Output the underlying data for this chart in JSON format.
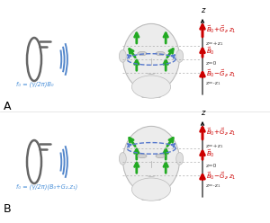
{
  "background_color": "#ffffff",
  "panel_A_label": "A",
  "panel_B_label": "B",
  "freq_label_A": "f₀ = (γ/2π)B₀",
  "freq_label_B": "f₀ = (γ/2π)(B₀+G₂.z₁)",
  "z_axis_label": "z",
  "arrow_color": "#cc0000",
  "freq_color": "#4a90d9",
  "coil_color": "#666666",
  "wave_color": "#5588cc",
  "green_arrow_color": "#22aa22",
  "dashed_color": "#7799cc",
  "z_line_color": "#999999",
  "face_color": "#e8e8e8",
  "face_edge_color": "#bbbbbb"
}
